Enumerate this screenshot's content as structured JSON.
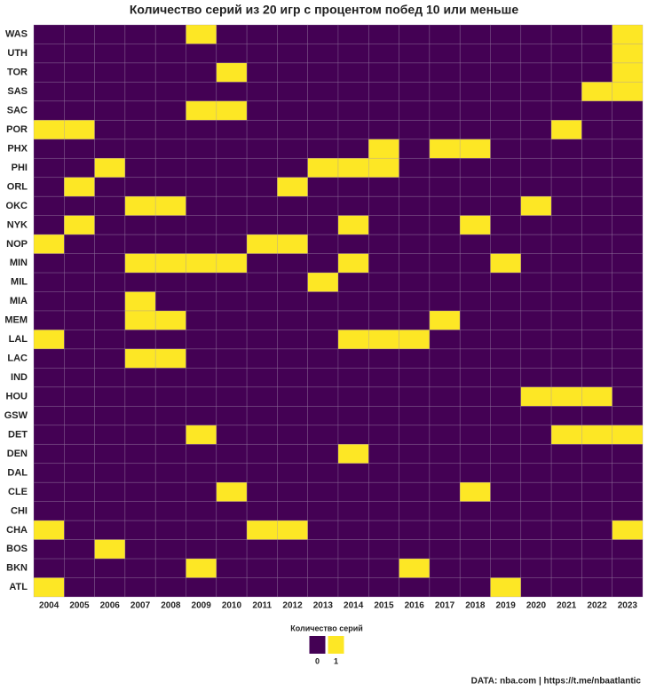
{
  "chart_data": {
    "type": "heatmap",
    "title": "Количество серий из 20 игр с процентом побед 10 или меньше",
    "x": [
      2004,
      2005,
      2006,
      2007,
      2008,
      2009,
      2010,
      2011,
      2012,
      2013,
      2014,
      2015,
      2016,
      2017,
      2018,
      2019,
      2020,
      2021,
      2022,
      2023
    ],
    "y": [
      "WAS",
      "UTH",
      "TOR",
      "SAS",
      "SAC",
      "POR",
      "PHX",
      "PHI",
      "ORL",
      "OKC",
      "NYK",
      "NOP",
      "MIN",
      "MIL",
      "MIA",
      "MEM",
      "LAL",
      "LAC",
      "IND",
      "HOU",
      "GSW",
      "DET",
      "DEN",
      "DAL",
      "CLE",
      "CHI",
      "CHA",
      "BOS",
      "BKN",
      "ATL"
    ],
    "values": [
      [
        0,
        0,
        0,
        0,
        0,
        1,
        0,
        0,
        0,
        0,
        0,
        0,
        0,
        0,
        0,
        0,
        0,
        0,
        0,
        1
      ],
      [
        0,
        0,
        0,
        0,
        0,
        0,
        0,
        0,
        0,
        0,
        0,
        0,
        0,
        0,
        0,
        0,
        0,
        0,
        0,
        1
      ],
      [
        0,
        0,
        0,
        0,
        0,
        0,
        1,
        0,
        0,
        0,
        0,
        0,
        0,
        0,
        0,
        0,
        0,
        0,
        0,
        1
      ],
      [
        0,
        0,
        0,
        0,
        0,
        0,
        0,
        0,
        0,
        0,
        0,
        0,
        0,
        0,
        0,
        0,
        0,
        0,
        1,
        1
      ],
      [
        0,
        0,
        0,
        0,
        0,
        1,
        1,
        0,
        0,
        0,
        0,
        0,
        0,
        0,
        0,
        0,
        0,
        0,
        0,
        0
      ],
      [
        1,
        1,
        0,
        0,
        0,
        0,
        0,
        0,
        0,
        0,
        0,
        0,
        0,
        0,
        0,
        0,
        0,
        1,
        0,
        0
      ],
      [
        0,
        0,
        0,
        0,
        0,
        0,
        0,
        0,
        0,
        0,
        0,
        1,
        0,
        1,
        1,
        0,
        0,
        0,
        0,
        0
      ],
      [
        0,
        0,
        1,
        0,
        0,
        0,
        0,
        0,
        0,
        1,
        1,
        1,
        0,
        0,
        0,
        0,
        0,
        0,
        0,
        0
      ],
      [
        0,
        1,
        0,
        0,
        0,
        0,
        0,
        0,
        1,
        0,
        0,
        0,
        0,
        0,
        0,
        0,
        0,
        0,
        0,
        0
      ],
      [
        0,
        0,
        0,
        1,
        1,
        0,
        0,
        0,
        0,
        0,
        0,
        0,
        0,
        0,
        0,
        0,
        1,
        0,
        0,
        0
      ],
      [
        0,
        1,
        0,
        0,
        0,
        0,
        0,
        0,
        0,
        0,
        1,
        0,
        0,
        0,
        1,
        0,
        0,
        0,
        0,
        0
      ],
      [
        1,
        0,
        0,
        0,
        0,
        0,
        0,
        1,
        1,
        0,
        0,
        0,
        0,
        0,
        0,
        0,
        0,
        0,
        0,
        0
      ],
      [
        0,
        0,
        0,
        1,
        1,
        1,
        1,
        0,
        0,
        0,
        1,
        0,
        0,
        0,
        0,
        1,
        0,
        0,
        0,
        0
      ],
      [
        0,
        0,
        0,
        0,
        0,
        0,
        0,
        0,
        0,
        1,
        0,
        0,
        0,
        0,
        0,
        0,
        0,
        0,
        0,
        0
      ],
      [
        0,
        0,
        0,
        1,
        0,
        0,
        0,
        0,
        0,
        0,
        0,
        0,
        0,
        0,
        0,
        0,
        0,
        0,
        0,
        0
      ],
      [
        0,
        0,
        0,
        1,
        1,
        0,
        0,
        0,
        0,
        0,
        0,
        0,
        0,
        1,
        0,
        0,
        0,
        0,
        0,
        0
      ],
      [
        1,
        0,
        0,
        0,
        0,
        0,
        0,
        0,
        0,
        0,
        1,
        1,
        1,
        0,
        0,
        0,
        0,
        0,
        0,
        0
      ],
      [
        0,
        0,
        0,
        1,
        1,
        0,
        0,
        0,
        0,
        0,
        0,
        0,
        0,
        0,
        0,
        0,
        0,
        0,
        0,
        0
      ],
      [
        0,
        0,
        0,
        0,
        0,
        0,
        0,
        0,
        0,
        0,
        0,
        0,
        0,
        0,
        0,
        0,
        0,
        0,
        0,
        0
      ],
      [
        0,
        0,
        0,
        0,
        0,
        0,
        0,
        0,
        0,
        0,
        0,
        0,
        0,
        0,
        0,
        0,
        1,
        1,
        1,
        0
      ],
      [
        0,
        0,
        0,
        0,
        0,
        0,
        0,
        0,
        0,
        0,
        0,
        0,
        0,
        0,
        0,
        0,
        0,
        0,
        0,
        0
      ],
      [
        0,
        0,
        0,
        0,
        0,
        1,
        0,
        0,
        0,
        0,
        0,
        0,
        0,
        0,
        0,
        0,
        0,
        1,
        1,
        1
      ],
      [
        0,
        0,
        0,
        0,
        0,
        0,
        0,
        0,
        0,
        0,
        1,
        0,
        0,
        0,
        0,
        0,
        0,
        0,
        0,
        0
      ],
      [
        0,
        0,
        0,
        0,
        0,
        0,
        0,
        0,
        0,
        0,
        0,
        0,
        0,
        0,
        0,
        0,
        0,
        0,
        0,
        0
      ],
      [
        0,
        0,
        0,
        0,
        0,
        0,
        1,
        0,
        0,
        0,
        0,
        0,
        0,
        0,
        1,
        0,
        0,
        0,
        0,
        0
      ],
      [
        0,
        0,
        0,
        0,
        0,
        0,
        0,
        0,
        0,
        0,
        0,
        0,
        0,
        0,
        0,
        0,
        0,
        0,
        0,
        0
      ],
      [
        1,
        0,
        0,
        0,
        0,
        0,
        0,
        1,
        1,
        0,
        0,
        0,
        0,
        0,
        0,
        0,
        0,
        0,
        0,
        1
      ],
      [
        0,
        0,
        1,
        0,
        0,
        0,
        0,
        0,
        0,
        0,
        0,
        0,
        0,
        0,
        0,
        0,
        0,
        0,
        0,
        0
      ],
      [
        0,
        0,
        0,
        0,
        0,
        1,
        0,
        0,
        0,
        0,
        0,
        0,
        1,
        0,
        0,
        0,
        0,
        0,
        0,
        0
      ],
      [
        1,
        0,
        0,
        0,
        0,
        0,
        0,
        0,
        0,
        0,
        0,
        0,
        0,
        0,
        0,
        1,
        0,
        0,
        0,
        0
      ]
    ],
    "scale": [
      {
        "value": 0,
        "color": "#440154"
      },
      {
        "value": 1,
        "color": "#fde725"
      }
    ],
    "legend_title": "Количество серий",
    "caption": "DATA: nba.com | https://t.me/nbaatlantic"
  }
}
